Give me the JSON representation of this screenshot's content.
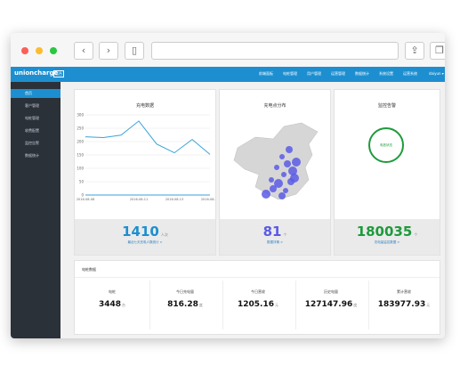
{
  "header": {
    "logo": "unioncharge",
    "badge": "后台",
    "nav": [
      "前端面板",
      "电桩管理",
      "用户管理",
      "运营管理",
      "数据统计",
      "系统设置",
      "运营系统"
    ],
    "user": "daiyun ▾"
  },
  "sidebar": {
    "items": [
      "首页",
      "客户管理",
      "电桩管理",
      "收费配置",
      "监控告警",
      "数据统计"
    ]
  },
  "cards": [
    {
      "title": "充电数据",
      "number": "1410",
      "unit": "人次",
      "link": "最近七天充电人数统计 >"
    },
    {
      "title": "充电点分布",
      "number": "81",
      "unit": "个",
      "link": "数据详情 >"
    },
    {
      "title": "监控告警",
      "ring": "电桩状态",
      "number": "180035",
      "unit": "个",
      "link": "充电量监控数据 >"
    }
  ],
  "chart_data": {
    "type": "line",
    "categories": [
      "2016-08-08",
      null,
      null,
      "2016-08-11",
      null,
      "2016-08-13",
      null,
      "2016-08-15"
    ],
    "values": [
      218,
      215,
      224,
      277,
      191,
      158,
      208,
      152
    ],
    "color": "#3aa3d8",
    "ylim": [
      0,
      300
    ],
    "yticks": [
      0,
      50,
      100,
      150,
      200,
      250,
      300
    ],
    "grid": true
  },
  "stats": {
    "title": "电桩数据",
    "items": [
      {
        "label": "电桩",
        "value": "3448",
        "unit": "台"
      },
      {
        "label": "今日充电量",
        "value": "816.28",
        "unit": "度"
      },
      {
        "label": "今日营收",
        "value": "1205.16",
        "unit": "元"
      },
      {
        "label": "历史电量",
        "value": "127147.96",
        "unit": "度"
      },
      {
        "label": "累计营收",
        "value": "183977.93",
        "unit": "元"
      }
    ]
  }
}
